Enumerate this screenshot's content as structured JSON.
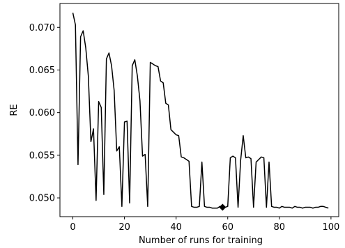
{
  "chart_data": {
    "type": "line",
    "title": "",
    "xlabel": "Number of runs for training",
    "ylabel": "RE",
    "xlim": [
      -5,
      103
    ],
    "ylim": [
      0.0478,
      0.0728
    ],
    "xticks": [
      0,
      20,
      40,
      60,
      80,
      100
    ],
    "yticks": [
      0.05,
      0.055,
      0.06,
      0.065,
      0.07
    ],
    "ytick_labels": [
      "0.050",
      "0.055",
      "0.060",
      "0.065",
      "0.070"
    ],
    "grid": false,
    "line_color": "#000000",
    "series": [
      {
        "x": [
          0,
          1,
          2,
          3,
          4,
          5,
          6,
          7,
          8,
          9,
          10,
          11,
          12,
          13,
          14,
          15,
          16,
          17,
          18,
          19,
          20,
          21,
          22,
          23,
          24,
          25,
          26,
          27,
          28,
          29,
          30,
          31,
          32,
          33,
          34,
          35,
          36,
          37,
          38,
          39,
          40,
          41,
          42,
          43,
          44,
          45,
          46,
          47,
          48,
          49,
          50,
          51,
          52,
          53,
          54,
          55,
          56,
          57,
          58,
          59,
          60,
          61,
          62,
          63,
          64,
          65,
          66,
          67,
          68,
          69,
          70,
          71,
          72,
          73,
          74,
          75,
          76,
          77,
          78,
          79,
          80,
          81,
          82,
          83,
          84,
          85,
          86,
          87,
          88,
          89,
          90,
          91,
          92,
          93,
          94,
          95,
          96,
          97,
          98,
          99
        ],
        "y": [
          0.0717,
          0.0703,
          0.0539,
          0.0689,
          0.0696,
          0.0676,
          0.0643,
          0.0566,
          0.0581,
          0.0497,
          0.0613,
          0.0606,
          0.0504,
          0.0663,
          0.067,
          0.0655,
          0.0626,
          0.0555,
          0.056,
          0.049,
          0.0589,
          0.059,
          0.0494,
          0.0655,
          0.0662,
          0.0643,
          0.0614,
          0.0549,
          0.0551,
          0.049,
          0.0659,
          0.0657,
          0.0655,
          0.0654,
          0.0637,
          0.0635,
          0.0611,
          0.0609,
          0.058,
          0.0577,
          0.0574,
          0.0573,
          0.0548,
          0.0547,
          0.0545,
          0.0543,
          0.049,
          0.0489,
          0.0489,
          0.049,
          0.0542,
          0.049,
          0.0489,
          0.0489,
          0.0488,
          0.0488,
          0.0488,
          0.049,
          0.0489,
          0.0489,
          0.049,
          0.0547,
          0.0549,
          0.0547,
          0.0489,
          0.0544,
          0.0573,
          0.0547,
          0.0548,
          0.0546,
          0.0489,
          0.0542,
          0.0545,
          0.0548,
          0.0547,
          0.0489,
          0.0542,
          0.049,
          0.0489,
          0.0489,
          0.0488,
          0.049,
          0.0489,
          0.0489,
          0.0489,
          0.0488,
          0.049,
          0.0489,
          0.0489,
          0.0488,
          0.0489,
          0.0489,
          0.0489,
          0.0488,
          0.0489,
          0.0489,
          0.049,
          0.049,
          0.0489,
          0.0488
        ]
      }
    ],
    "marker": {
      "shape": "diamond",
      "x": 58,
      "y": 0.0489
    }
  }
}
